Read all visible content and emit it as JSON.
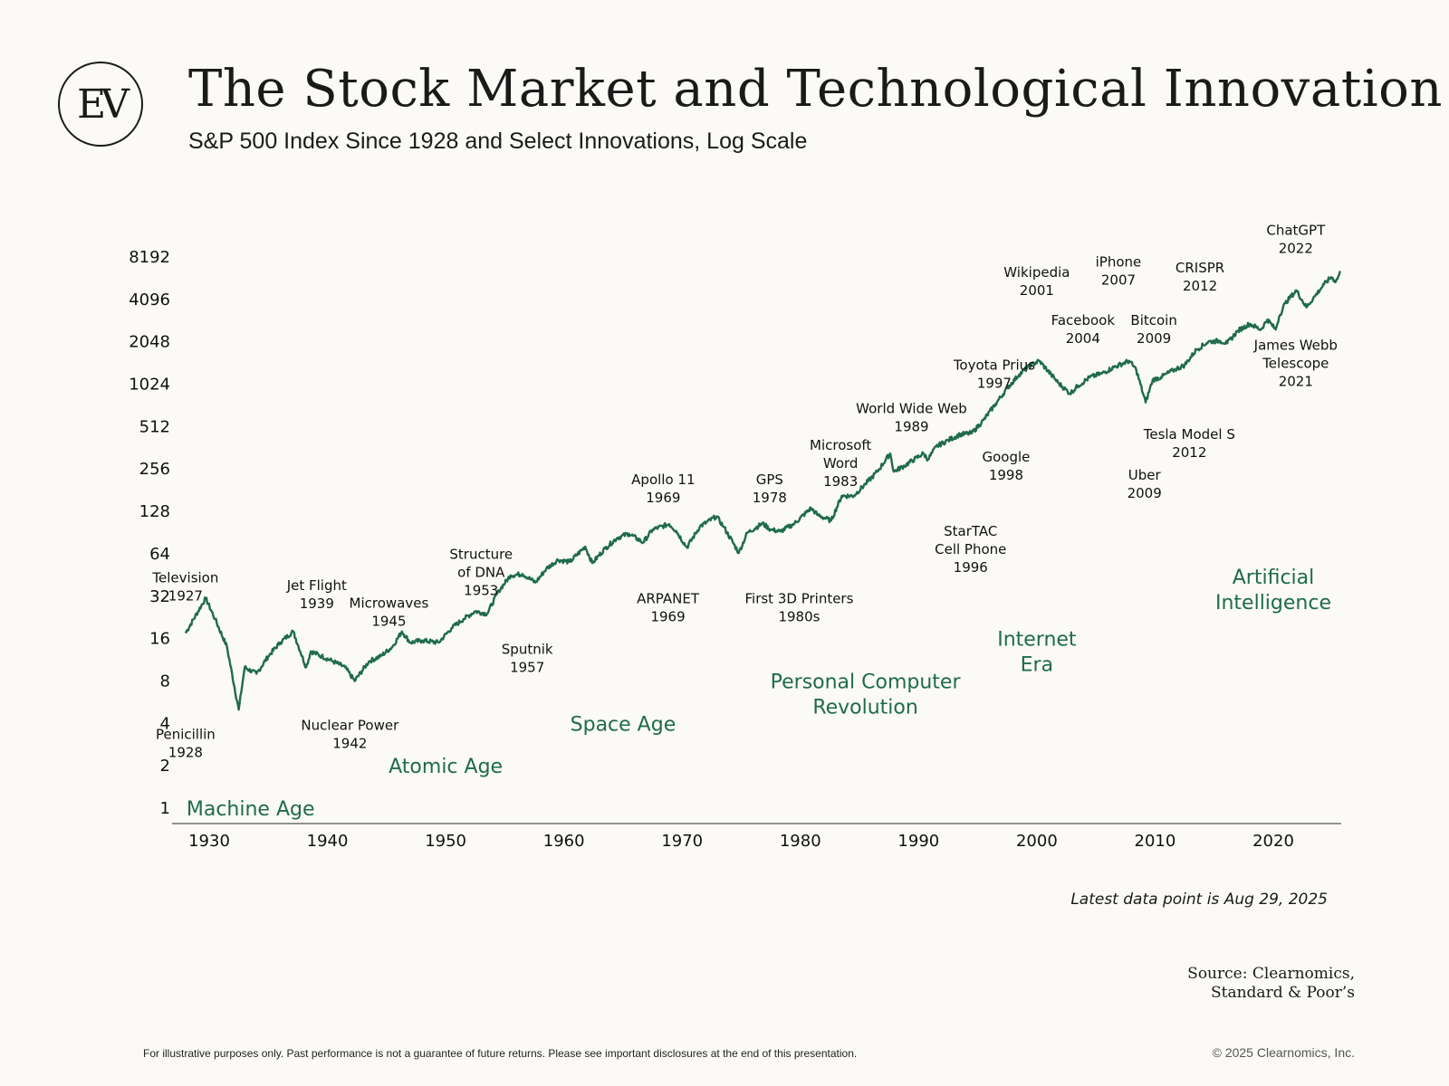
{
  "header": {
    "logo_text": "EV",
    "title": "The Stock Market and Technological Innovation",
    "subtitle": "S&P 500 Index Since 1928 and Select Innovations, Log Scale"
  },
  "notes": {
    "latest": "Latest data point is Aug 29, 2025",
    "source_line1": "Source: Clearnomics,",
    "source_line2": "Standard & Poor’s",
    "disclaimer": "For illustrative purposes only. Past performance is not a guarantee of future returns. Please see important disclosures at the end of this presentation.",
    "copyright": "© 2025 Clearnomics, Inc."
  },
  "chart_data": {
    "type": "line",
    "title": "The Stock Market and Technological Innovation",
    "subtitle": "S&P 500 Index Since 1928 and Select Innovations, Log Scale",
    "xlabel": "",
    "ylabel": "",
    "y_scale": "log2",
    "ylim": [
      1,
      8192
    ],
    "y_ticks": [
      1,
      2,
      4,
      8,
      16,
      32,
      64,
      128,
      256,
      512,
      1024,
      2048,
      4096,
      8192
    ],
    "xlim": [
      1928,
      2025.7
    ],
    "x_ticks": [
      1930,
      1940,
      1950,
      1960,
      1970,
      1980,
      1990,
      2000,
      2010,
      2020
    ],
    "line_color": "#1f6b4a",
    "era_color": "#1f6b4a",
    "series": [
      {
        "x": [
          1928,
          1929.7,
          1930.5,
          1931.5,
          1932.5,
          1933,
          1934,
          1935,
          1936,
          1937.1,
          1938.2,
          1938.6,
          1939.5,
          1940.5,
          1941.5,
          1942.3,
          1943.5,
          1944.5,
          1945.5,
          1946.3,
          1947,
          1948,
          1949.4,
          1950.5,
          1951.5,
          1952.5,
          1953.5,
          1954.5,
          1955.5,
          1956.5,
          1957.6,
          1958.5,
          1959.5,
          1960.5,
          1961.8,
          1962.4,
          1963.5,
          1964.5,
          1965.5,
          1966.7,
          1967.5,
          1968.9,
          1969.5,
          1970.4,
          1971.5,
          1972.9,
          1973.5,
          1974.8,
          1975.5,
          1976.8,
          1977.5,
          1978.3,
          1979.5,
          1980.9,
          1981.5,
          1982.6,
          1983.5,
          1984.5,
          1985.5,
          1986.5,
          1987.6,
          1987.9,
          1988.8,
          1990.4,
          1990.8,
          1991.5,
          1992.5,
          1993.5,
          1994.5,
          1995.5,
          1996.5,
          1997.5,
          1998.5,
          1999.5,
          2000.2,
          2001.2,
          2001.8,
          2002.8,
          2003.5,
          2004.5,
          2005.5,
          2006.5,
          2007.8,
          2008.4,
          2009.2,
          2009.8,
          2010.5,
          2011.5,
          2012.5,
          2013.5,
          2014.5,
          2015.5,
          2016.1,
          2017,
          2018,
          2018.95,
          2019.5,
          2020.2,
          2020.5,
          2021,
          2021.95,
          2022.8,
          2023.5,
          2024.3,
          2024.9,
          2025.3,
          2025.7
        ],
        "values": [
          17.5,
          31,
          22,
          14,
          5,
          10,
          9,
          12,
          15,
          18,
          10,
          13,
          12,
          11,
          10,
          8,
          11,
          12,
          14,
          18,
          15,
          15.5,
          15,
          19,
          22,
          25,
          24,
          35,
          45,
          46,
          40,
          50,
          58,
          56,
          72,
          55,
          70,
          83,
          89,
          77,
          95,
          104,
          93,
          71,
          100,
          118,
          100,
          65,
          90,
          105,
          95,
          92,
          105,
          135,
          120,
          110,
          165,
          165,
          200,
          245,
          330,
          245,
          270,
          330,
          300,
          370,
          410,
          450,
          460,
          570,
          740,
          960,
          1200,
          1400,
          1500,
          1200,
          1050,
          880,
          1000,
          1150,
          1220,
          1350,
          1500,
          1300,
          760,
          1100,
          1150,
          1280,
          1400,
          1800,
          2050,
          2080,
          2000,
          2450,
          2750,
          2500,
          2950,
          2500,
          3100,
          3850,
          4750,
          3600,
          4300,
          5250,
          5900,
          5500,
          6450
        ]
      }
    ],
    "eras": [
      {
        "label": "Machine Age",
        "x": 1933.5,
        "y": 1
      },
      {
        "label": "Atomic Age",
        "x": 1950,
        "y": 2
      },
      {
        "label": "Space Age",
        "x": 1965,
        "y": 4
      },
      {
        "label": "Personal Computer\nRevolution",
        "x": 1985.5,
        "y": 8
      },
      {
        "label": "Internet\nEra",
        "x": 2000,
        "y": 16
      },
      {
        "label": "Artificial\nIntelligence",
        "x": 2020,
        "y": 44
      }
    ],
    "annotations": [
      {
        "text": "Television\n1927",
        "x": 1928,
        "y": 40
      },
      {
        "text": "Penicillin\n1928",
        "x": 1928,
        "y": 3.1
      },
      {
        "text": "Jet Flight\n1939",
        "x": 1939.1,
        "y": 35.5
      },
      {
        "text": "Nuclear Power\n1942",
        "x": 1941.9,
        "y": 3.6
      },
      {
        "text": "Microwaves\n1945",
        "x": 1945.2,
        "y": 26.5
      },
      {
        "text": "Structure\nof DNA\n1953",
        "x": 1953,
        "y": 59
      },
      {
        "text": "Sputnik\n1957",
        "x": 1956.9,
        "y": 12.5
      },
      {
        "text": "Apollo 11\n1969",
        "x": 1968.4,
        "y": 200
      },
      {
        "text": "ARPANET\n1969",
        "x": 1968.8,
        "y": 28.5
      },
      {
        "text": "GPS\n1978",
        "x": 1977.4,
        "y": 200
      },
      {
        "text": "First 3D Printers\n1980s",
        "x": 1979.9,
        "y": 28.5
      },
      {
        "text": "Microsoft\nWord\n1983",
        "x": 1983.4,
        "y": 350
      },
      {
        "text": "World Wide Web\n1989",
        "x": 1989.4,
        "y": 640
      },
      {
        "text": "StarTAC\nCell Phone\n1996",
        "x": 1994.4,
        "y": 86
      },
      {
        "text": "Toyota Prius\n1997",
        "x": 1996.4,
        "y": 1300
      },
      {
        "text": "Google\n1998",
        "x": 1997.4,
        "y": 290
      },
      {
        "text": "Wikipedia\n2001",
        "x": 2000,
        "y": 5900
      },
      {
        "text": "Facebook\n2004",
        "x": 2003.9,
        "y": 2700
      },
      {
        "text": "iPhone\n2007",
        "x": 2006.9,
        "y": 7000
      },
      {
        "text": "Bitcoin\n2009",
        "x": 2009.9,
        "y": 2700
      },
      {
        "text": "Uber\n2009",
        "x": 2009.1,
        "y": 215
      },
      {
        "text": "Tesla Model S\n2012",
        "x": 2012.9,
        "y": 420
      },
      {
        "text": "CRISPR\n2012",
        "x": 2013.8,
        "y": 6350
      },
      {
        "text": "James Webb\nTelescope\n2021",
        "x": 2021.9,
        "y": 1800
      },
      {
        "text": "ChatGPT\n2022",
        "x": 2021.9,
        "y": 11800
      }
    ]
  }
}
